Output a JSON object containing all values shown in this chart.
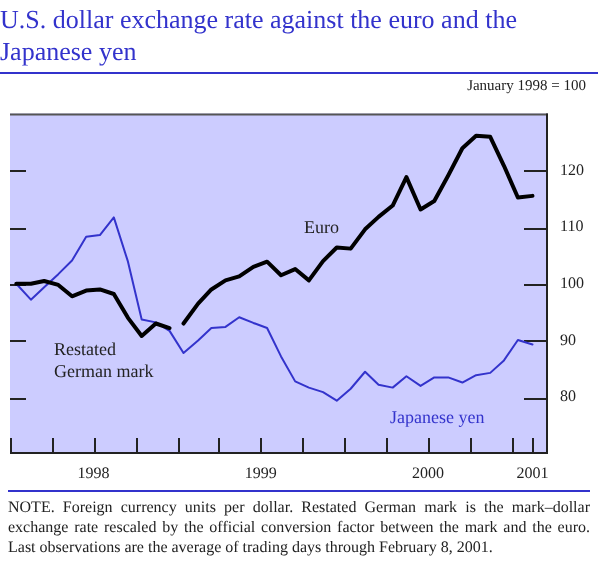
{
  "chart_data": {
    "type": "line",
    "title": "U.S. dollar exchange rate against the euro and the Japanese yen",
    "annotations": [
      "January 1998 = 100",
      "NOTE. Foreign currency units per dollar. Restated German mark is the mark–dollar exchange rate rescaled by the official conversion factor between the mark and the euro. Last observations are the average of trading days through February 8, 2001."
    ],
    "series": [
      {
        "name": "Restated German mark",
        "color": "#000000",
        "x": [
          "1998-01-15",
          "1998-02-15",
          "1998-03-15",
          "1998-04-15",
          "1998-05-15",
          "1998-06-15",
          "1998-07-15",
          "1998-08-15",
          "1998-09-15",
          "1998-10-15",
          "1998-11-15",
          "1998-12-15"
        ],
        "values": [
          100,
          100,
          100.5,
          99.8,
          97.8,
          98.8,
          99,
          98.2,
          94,
          90.8,
          93,
          92.2
        ]
      },
      {
        "name": "Euro",
        "color": "#000000",
        "x": [
          "1999-01-15",
          "1999-02-15",
          "1999-03-15",
          "1999-04-15",
          "1999-05-15",
          "1999-06-15",
          "1999-07-15",
          "1999-08-15",
          "1999-09-15",
          "1999-10-15",
          "1999-11-15",
          "1999-12-15",
          "2000-01-15",
          "2000-02-15",
          "2000-03-15",
          "2000-04-15",
          "2000-05-15",
          "2000-06-15",
          "2000-07-15",
          "2000-08-15",
          "2000-09-15",
          "2000-10-15",
          "2000-11-15",
          "2000-12-15",
          "2001-01-15",
          "2001-02-15"
        ],
        "values": [
          93,
          96.5,
          99,
          100.6,
          101.3,
          103,
          103.9,
          101.5,
          102.6,
          100.6,
          104,
          106.4,
          106.2,
          109.6,
          111.8,
          113.8,
          118.8,
          113.1,
          114.6,
          119.1,
          123.9,
          126.1,
          125.9,
          120.8,
          115.2,
          115.5
        ]
      },
      {
        "name": "Japanese yen",
        "color": "#3333cc",
        "x": [
          "1998-01-15",
          "1998-02-15",
          "1998-03-15",
          "1998-04-15",
          "1998-05-15",
          "1998-06-15",
          "1998-07-15",
          "1998-08-15",
          "1998-09-15",
          "1998-10-15",
          "1998-11-15",
          "1998-12-15",
          "1999-01-15",
          "1999-02-15",
          "1999-03-15",
          "1999-04-15",
          "1999-05-15",
          "1999-06-15",
          "1999-07-15",
          "1999-08-15",
          "1999-09-15",
          "1999-10-15",
          "1999-11-15",
          "1999-12-15",
          "2000-01-15",
          "2000-02-15",
          "2000-03-15",
          "2000-04-15",
          "2000-05-15",
          "2000-06-15",
          "2000-07-15",
          "2000-08-15",
          "2000-09-15",
          "2000-10-15",
          "2000-11-15",
          "2000-12-15",
          "2001-01-15",
          "2001-02-15"
        ],
        "values": [
          100,
          97.2,
          99.4,
          101.7,
          104.1,
          108.3,
          108.6,
          111.7,
          103.9,
          93.7,
          93.2,
          91.7,
          87.8,
          90,
          92.2,
          92.4,
          94.1,
          93.1,
          92.2,
          87.2,
          82.8,
          81.7,
          80.9,
          79.4,
          81.5,
          84.5,
          82.2,
          81.7,
          83.7,
          82,
          83.5,
          83.5,
          82.6,
          83.9,
          84.3,
          86.5,
          90.1,
          89.3
        ]
      }
    ],
    "xlim": [
      "1998-01-01",
      "2001-03-20"
    ],
    "xticks": [
      {
        "value": "1998-01-01",
        "label": null
      },
      {
        "value": "1998-04-01",
        "label": null
      },
      {
        "value": "1998-07-01",
        "label": "1998"
      },
      {
        "value": "1998-10-01",
        "label": null
      },
      {
        "value": "1999-01-01",
        "label": null
      },
      {
        "value": "1999-04-01",
        "label": null
      },
      {
        "value": "1999-07-01",
        "label": "1999"
      },
      {
        "value": "1999-10-01",
        "label": null
      },
      {
        "value": "2000-01-01",
        "label": null
      },
      {
        "value": "2000-04-01",
        "label": null
      },
      {
        "value": "2000-07-01",
        "label": "2000"
      },
      {
        "value": "2000-10-01",
        "label": null
      },
      {
        "value": "2001-01-01",
        "label": null
      },
      {
        "value": "2001-02-15",
        "label": "2001"
      }
    ],
    "ylim": [
      70,
      130
    ],
    "yticks": [
      80,
      90,
      100,
      110,
      120
    ],
    "grid": false,
    "legend": false,
    "marker": "none",
    "line_style": "solid"
  }
}
